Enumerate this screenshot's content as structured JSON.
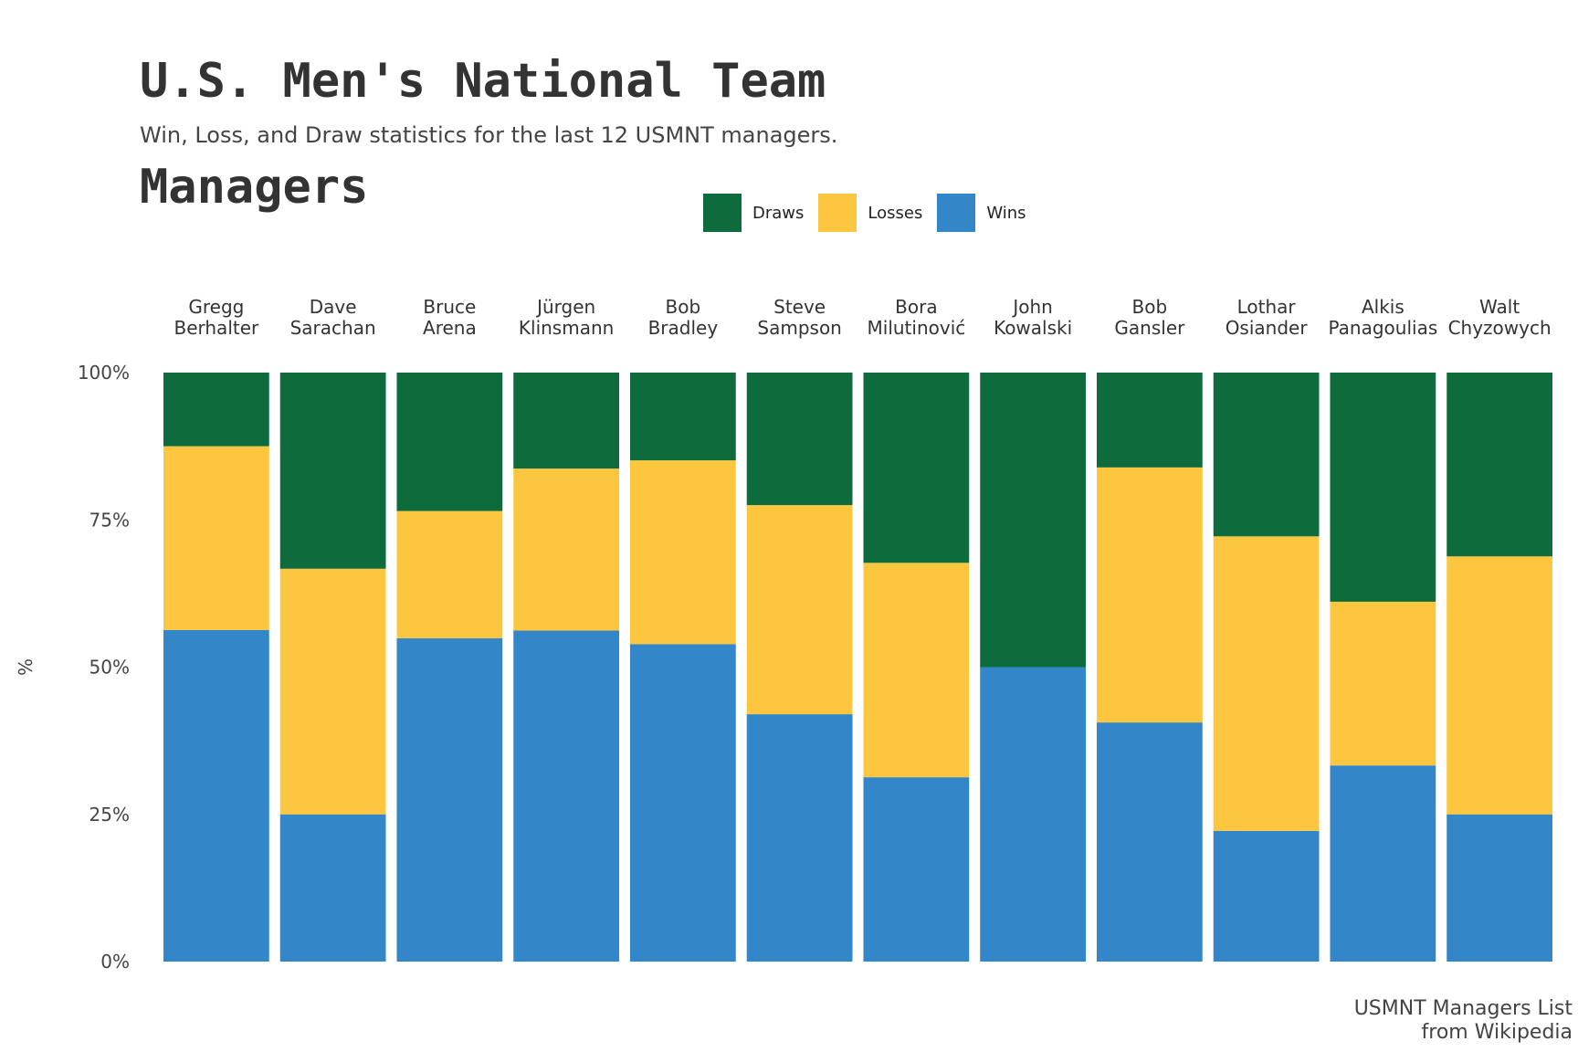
{
  "title_lines": [
    "U.S. Men's National Team",
    "Managers"
  ],
  "subtitle": "Win, Loss, and Draw statistics for the last 12 USMNT managers.",
  "caption_lines": [
    "USMNT Managers List",
    "from Wikipedia"
  ],
  "colors": {
    "Draws": "#0e6b3c",
    "Losses": "#fcc63f",
    "Wins": "#3386c8"
  },
  "legend": [
    "Draws",
    "Losses",
    "Wins"
  ],
  "chart_data": {
    "type": "bar",
    "stacked": true,
    "normalized": true,
    "categories": [
      [
        "Gregg",
        "Berhalter"
      ],
      [
        "Dave",
        "Sarachan"
      ],
      [
        "Bruce",
        "Arena"
      ],
      [
        "Jürgen",
        "Klinsmann"
      ],
      [
        "Bob",
        "Bradley"
      ],
      [
        "Steve",
        "Sampson"
      ],
      [
        "Bora",
        "Milutinović"
      ],
      [
        "John",
        "Kowalski"
      ],
      [
        "Bob",
        "Gansler"
      ],
      [
        "Lothar",
        "Osiander"
      ],
      [
        "Alkis",
        "Panagoulias"
      ],
      [
        "Walt",
        "Chyzowych"
      ]
    ],
    "series": [
      {
        "name": "Wins",
        "values": [
          56.3,
          25.0,
          54.9,
          56.2,
          53.9,
          42.0,
          31.3,
          50.0,
          40.6,
          22.2,
          33.3,
          25.0
        ]
      },
      {
        "name": "Losses",
        "values": [
          31.2,
          41.7,
          21.6,
          27.5,
          31.2,
          35.5,
          36.4,
          0.0,
          43.3,
          50.0,
          27.8,
          43.8
        ]
      },
      {
        "name": "Draws",
        "values": [
          12.5,
          33.3,
          23.5,
          16.3,
          14.9,
          22.5,
          32.3,
          50.0,
          16.1,
          27.8,
          38.9,
          31.2
        ]
      }
    ],
    "ylabel": "%",
    "ylim": [
      0,
      100
    ],
    "yticks": [
      "0%",
      "25%",
      "50%",
      "75%",
      "100%"
    ],
    "x_labels_position": "top",
    "legend_position": "top",
    "grid": false
  }
}
